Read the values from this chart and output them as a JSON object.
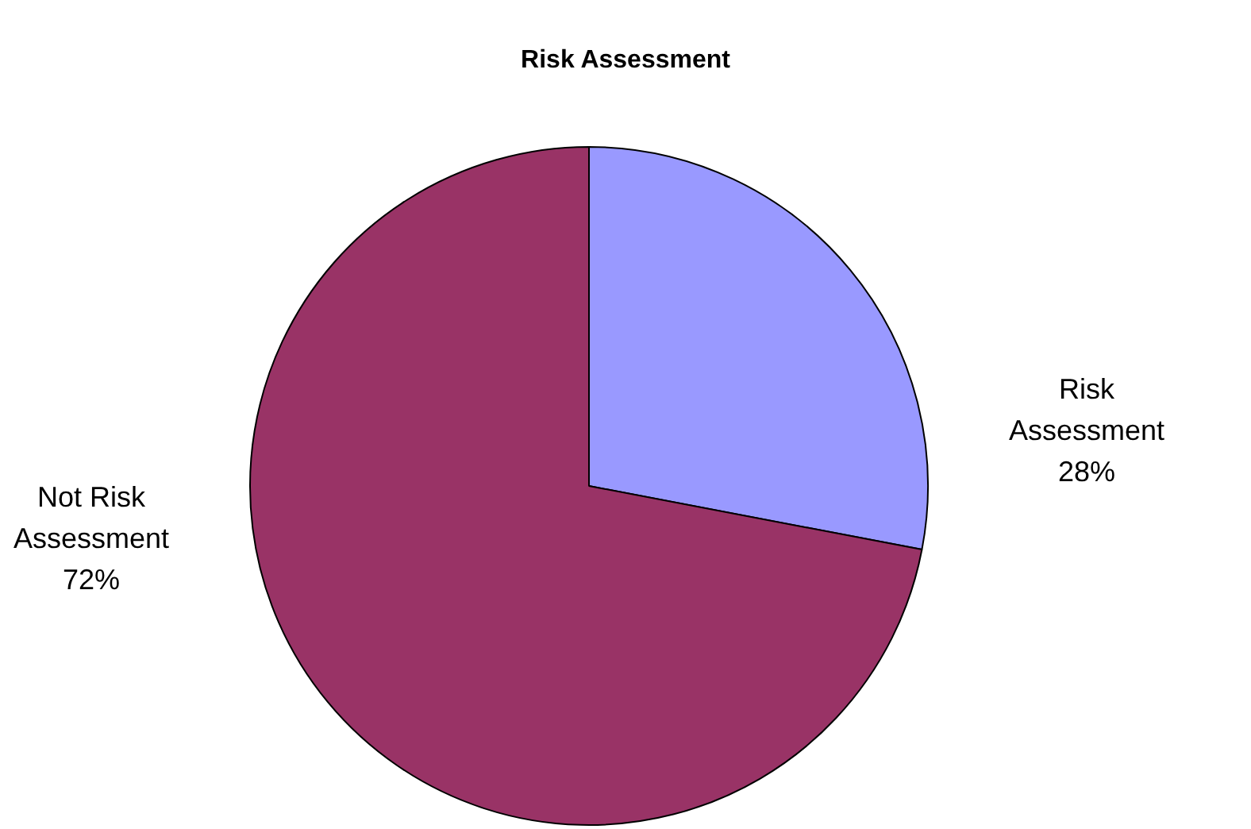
{
  "chart_data": {
    "type": "pie",
    "title": "Risk Assessment",
    "categories": [
      "Risk Assessment",
      "Not Risk Assessment"
    ],
    "values": [
      28,
      72
    ],
    "value_labels": [
      "28%",
      "72%"
    ],
    "colors": [
      "#9999ff",
      "#993366"
    ]
  }
}
